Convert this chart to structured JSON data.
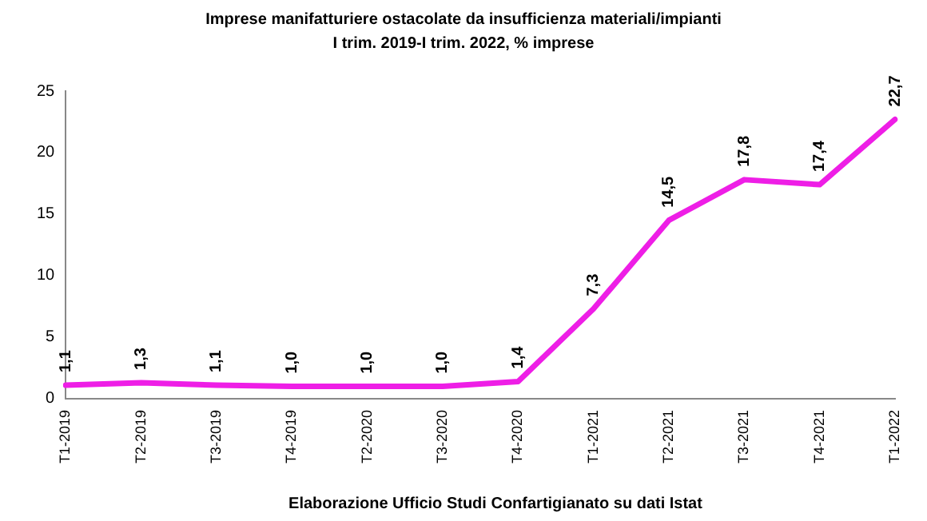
{
  "chart_data": {
    "type": "line",
    "title": "Imprese manifatturiere ostacolate da insufficienza materiali/impianti",
    "subtitle": "I trim. 2019-I trim. 2022, % imprese",
    "categories": [
      "T1-2019",
      "T2-2019",
      "T3-2019",
      "T4-2019",
      "T2-2020",
      "T3-2020",
      "T4-2020",
      "T1-2021",
      "T2-2021",
      "T3-2021",
      "T4-2021",
      "T1-2022"
    ],
    "series": [
      {
        "color": "#ee1ee6",
        "values": [
          1.1,
          1.3,
          1.1,
          1.0,
          1.0,
          1.0,
          1.4,
          7.3,
          14.5,
          17.8,
          17.4,
          22.7
        ],
        "value_labels": [
          "1,1",
          "1,3",
          "1,1",
          "1,0",
          "1,0",
          "1,0",
          "1,4",
          "7,3",
          "14,5",
          "17,8",
          "17,4",
          "22,7"
        ]
      }
    ],
    "ylim": [
      0,
      25
    ],
    "yticks": [
      0,
      5,
      10,
      15,
      20,
      25
    ],
    "grid": false,
    "legend": false,
    "marker": "none",
    "line_style": "solid",
    "annotations": [
      "Elaborazione Ufficio Studi Confartigianato su dati Istat"
    ]
  }
}
